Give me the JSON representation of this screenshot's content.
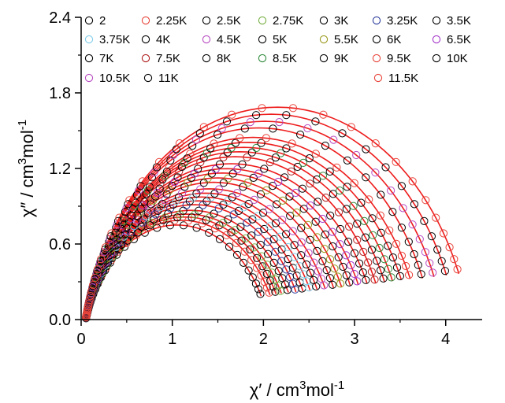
{
  "chart_data": {
    "type": "scatter",
    "title": "",
    "xlabel": {
      "main": "χ′ / cm",
      "sup": "3",
      "tail": "mol",
      "sup2": "-1"
    },
    "ylabel": {
      "main": "χ″ / cm",
      "sup": "3",
      "tail": "mol",
      "sup2": "-1"
    },
    "xlim": [
      0,
      4.4
    ],
    "ylim": [
      0,
      2.4
    ],
    "xticks": [
      0,
      1,
      2,
      3,
      4
    ],
    "xtick_labels": [
      "0",
      "1",
      "2",
      "3",
      "4"
    ],
    "yticks": [
      0,
      0.6,
      1.2,
      1.8,
      2.4
    ],
    "ytick_labels": [
      "0.0",
      "0.6",
      "1.2",
      "1.8",
      "2.4"
    ],
    "grid": false,
    "legend_position": "top, inside plot",
    "fit_color": "#ee1c1c",
    "series": [
      {
        "name": "2",
        "color": "#000000",
        "chi_s": 0.05,
        "chi_t": 2.05,
        "alpha": 0.18
      },
      {
        "name": "2.25K",
        "color": "#e8443a",
        "chi_s": 0.05,
        "chi_t": 2.15,
        "alpha": 0.18
      },
      {
        "name": "2.5K",
        "color": "#000000",
        "chi_s": 0.05,
        "chi_t": 2.22,
        "alpha": 0.18
      },
      {
        "name": "2.75K",
        "color": "#76b041",
        "chi_s": 0.05,
        "chi_t": 2.28,
        "alpha": 0.18
      },
      {
        "name": "3K",
        "color": "#000000",
        "chi_s": 0.05,
        "chi_t": 2.36,
        "alpha": 0.18
      },
      {
        "name": "3.25K",
        "color": "#2d3d9c",
        "chi_s": 0.05,
        "chi_t": 2.44,
        "alpha": 0.17
      },
      {
        "name": "3.5K",
        "color": "#000000",
        "chi_s": 0.05,
        "chi_t": 2.52,
        "alpha": 0.17
      },
      {
        "name": "3.75K",
        "color": "#7fcde9",
        "chi_s": 0.05,
        "chi_t": 2.6,
        "alpha": 0.17
      },
      {
        "name": "4K",
        "color": "#000000",
        "chi_s": 0.05,
        "chi_t": 2.68,
        "alpha": 0.17
      },
      {
        "name": "4.5K",
        "color": "#b74bc1",
        "chi_s": 0.05,
        "chi_t": 2.77,
        "alpha": 0.17
      },
      {
        "name": "5K",
        "color": "#000000",
        "chi_s": 0.05,
        "chi_t": 2.86,
        "alpha": 0.16
      },
      {
        "name": "5.5K",
        "color": "#9a9a1e",
        "chi_s": 0.05,
        "chi_t": 2.95,
        "alpha": 0.16
      },
      {
        "name": "6K",
        "color": "#000000",
        "chi_s": 0.05,
        "chi_t": 3.05,
        "alpha": 0.16
      },
      {
        "name": "6.5K",
        "color": "#a335c9",
        "chi_s": 0.05,
        "chi_t": 3.14,
        "alpha": 0.16
      },
      {
        "name": "7K",
        "color": "#000000",
        "chi_s": 0.05,
        "chi_t": 3.24,
        "alpha": 0.16
      },
      {
        "name": "7.5K",
        "color": "#b01c1c",
        "chi_s": 0.05,
        "chi_t": 3.33,
        "alpha": 0.15
      },
      {
        "name": "8K",
        "color": "#000000",
        "chi_s": 0.05,
        "chi_t": 3.43,
        "alpha": 0.15
      },
      {
        "name": "8.5K",
        "color": "#2e8b3a",
        "chi_s": 0.05,
        "chi_t": 3.52,
        "alpha": 0.15
      },
      {
        "name": "9K",
        "color": "#000000",
        "chi_s": 0.05,
        "chi_t": 3.62,
        "alpha": 0.15
      },
      {
        "name": "9.5K",
        "color": "#e8443a",
        "chi_s": 0.05,
        "chi_t": 3.72,
        "alpha": 0.15
      },
      {
        "name": "10K",
        "color": "#000000",
        "chi_s": 0.05,
        "chi_t": 3.85,
        "alpha": 0.14
      },
      {
        "name": "10.5K",
        "color": "#b74bc1",
        "chi_s": 0.05,
        "chi_t": 3.98,
        "alpha": 0.14
      },
      {
        "name": "11K",
        "color": "#000000",
        "chi_s": 0.05,
        "chi_t": 4.12,
        "alpha": 0.14
      },
      {
        "name": "11.5K",
        "color": "#e8443a",
        "chi_s": 0.05,
        "chi_t": 4.26,
        "alpha": 0.14
      }
    ]
  }
}
